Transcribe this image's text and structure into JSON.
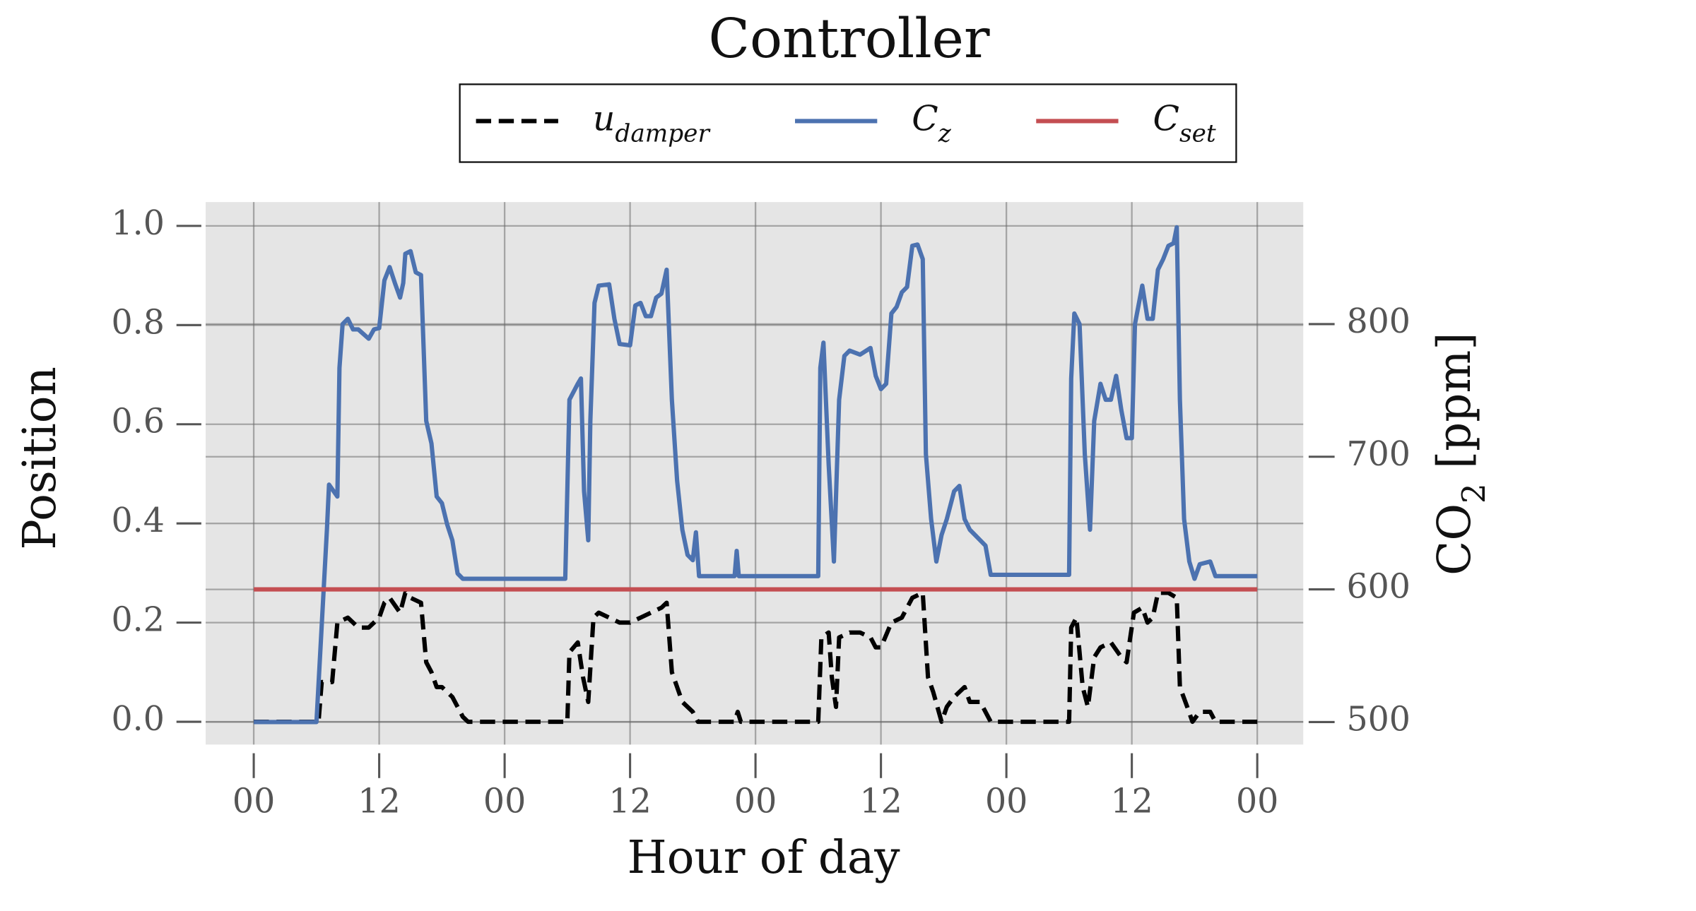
{
  "chart_data": {
    "type": "line",
    "title": "Controller",
    "xlabel": "Hour of day",
    "ylabel": "Position",
    "y2label": "CO_2 [ppm]",
    "xlim": [
      -4.6,
      100.4
    ],
    "ylim": [
      -0.046,
      1.048
    ],
    "y2lim": [
      483,
      892
    ],
    "xticks": [
      {
        "value": 0,
        "label": "00"
      },
      12,
      {
        "value": 24,
        "label": "00"
      },
      {
        "value": 36,
        "label": "12"
      },
      {
        "value": 48,
        "label": "00"
      },
      {
        "value": 60,
        "label": "12"
      },
      {
        "value": 72,
        "label": "00"
      },
      {
        "value": 84,
        "label": "12"
      },
      {
        "value": 96,
        "label": "00"
      }
    ],
    "yticks": [
      {
        "value": 0,
        "label": "0.0"
      },
      0.2,
      0.4,
      0.6,
      0.8,
      {
        "value": 1,
        "label": "1.0"
      }
    ],
    "y2ticks": [
      500,
      600,
      700,
      800
    ],
    "grid": true,
    "legend": "upper center",
    "series": [
      {
        "name": "u_damper",
        "color": "#000000",
        "dash": true,
        "axis": "y",
        "x": [
          0,
          6.2,
          6.5,
          7.5,
          8,
          9,
          10,
          11,
          12,
          12.5,
          13,
          14,
          14.5,
          15,
          16,
          16.5,
          17,
          17.5,
          18,
          19,
          20,
          20.5,
          30,
          30.2,
          31,
          31.5,
          32,
          32.5,
          33,
          34,
          35,
          36,
          37,
          38,
          39,
          39.5,
          40,
          40.5,
          41,
          42,
          42.5,
          46,
          46.3,
          46.6,
          54,
          54.3,
          55,
          55.3,
          55.7,
          56,
          57,
          58,
          59,
          59.5,
          60,
          61,
          62,
          63,
          64,
          64.5,
          65,
          65.8,
          66.3,
          67,
          68,
          68.5,
          69.5,
          70.5,
          78,
          78.2,
          78.7,
          79.3,
          79.8,
          80.4,
          81,
          82,
          83,
          83.5,
          84.2,
          85,
          85.5,
          86,
          86.5,
          87.5,
          88.3,
          88.6,
          89.3,
          89.8,
          90.5,
          91.5,
          92,
          96
        ],
        "values": [
          0,
          0,
          0.08,
          0.08,
          0.2,
          0.21,
          0.19,
          0.19,
          0.21,
          0.24,
          0.25,
          0.22,
          0.26,
          0.25,
          0.24,
          0.12,
          0.1,
          0.07,
          0.07,
          0.05,
          0.01,
          0,
          0,
          0.14,
          0.16,
          0.09,
          0.04,
          0.21,
          0.22,
          0.21,
          0.2,
          0.2,
          0.21,
          0.22,
          0.23,
          0.24,
          0.1,
          0.07,
          0.04,
          0.02,
          0,
          0,
          0.02,
          0,
          0,
          0.17,
          0.18,
          0.09,
          0.03,
          0.17,
          0.18,
          0.18,
          0.17,
          0.15,
          0.15,
          0.2,
          0.21,
          0.25,
          0.26,
          0.09,
          0.06,
          0,
          0.03,
          0.05,
          0.07,
          0.04,
          0.04,
          0,
          0,
          0.19,
          0.21,
          0.07,
          0.03,
          0.13,
          0.15,
          0.16,
          0.13,
          0.12,
          0.22,
          0.23,
          0.2,
          0.21,
          0.26,
          0.26,
          0.25,
          0.07,
          0.03,
          0,
          0.02,
          0.02,
          0,
          0
        ]
      },
      {
        "name": "C_z",
        "color": "#4c72b0",
        "axis": "y2",
        "x": [
          0,
          6,
          7,
          7.2,
          8,
          8.2,
          8.5,
          9,
          9.5,
          10,
          11,
          11.5,
          12,
          12.5,
          13,
          13.5,
          14,
          14.3,
          14.5,
          15,
          15.5,
          16,
          16.5,
          17,
          17.5,
          18,
          18.5,
          19,
          19.5,
          20,
          21,
          29.8,
          30.2,
          31,
          31.3,
          31.6,
          32,
          32.2,
          32.6,
          33,
          34,
          34.5,
          35,
          36,
          36.5,
          37,
          37.5,
          38,
          38.5,
          39,
          39.5,
          40,
          40.5,
          41,
          41.5,
          42,
          42.3,
          42.6,
          46,
          46.2,
          46.4,
          54,
          54.2,
          54.5,
          55,
          55.5,
          56,
          56.5,
          57,
          58,
          59,
          59.5,
          60,
          60.5,
          61,
          61.5,
          62,
          62.5,
          63,
          63.5,
          64,
          64.3,
          64.8,
          65.3,
          65.8,
          66.3,
          67,
          67.5,
          68,
          68.5,
          69,
          70,
          70.5,
          78,
          78.2,
          78.5,
          79,
          79.5,
          80,
          80.4,
          81,
          81.5,
          82,
          82.5,
          83,
          83.5,
          84,
          84.3,
          85,
          85.5,
          86,
          86.5,
          87,
          87.5,
          88,
          88.3,
          88.6,
          89,
          89.5,
          90,
          90.5,
          91.5,
          92,
          96
        ],
        "values": [
          500,
          500,
          645,
          679,
          670,
          767,
          800,
          804,
          796,
          796,
          789,
          796,
          797,
          833,
          843,
          831,
          820,
          831,
          853,
          855,
          839,
          837,
          727,
          710,
          670,
          665,
          649,
          637,
          612,
          608,
          608,
          608,
          743,
          755,
          759,
          674,
          637,
          727,
          816,
          829,
          830,
          804,
          785,
          784,
          814,
          816,
          806,
          806,
          820,
          823,
          841,
          743,
          682,
          645,
          626,
          622,
          643,
          610,
          610,
          629,
          610,
          610,
          767,
          786,
          694,
          621,
          743,
          776,
          780,
          777,
          782,
          761,
          751,
          755,
          808,
          813,
          824,
          828,
          859,
          860,
          849,
          702,
          653,
          621,
          641,
          653,
          674,
          678,
          653,
          645,
          641,
          633,
          611,
          611,
          759,
          808,
          800,
          702,
          645,
          727,
          755,
          743,
          743,
          761,
          735,
          714,
          714,
          800,
          829,
          804,
          804,
          841,
          849,
          859,
          861,
          873,
          743,
          653,
          621,
          608,
          619,
          621,
          610,
          610
        ]
      },
      {
        "name": "C_set",
        "color": "#c44e52",
        "axis": "y2",
        "x": [
          0,
          96
        ],
        "values": [
          600,
          600
        ]
      }
    ]
  }
}
